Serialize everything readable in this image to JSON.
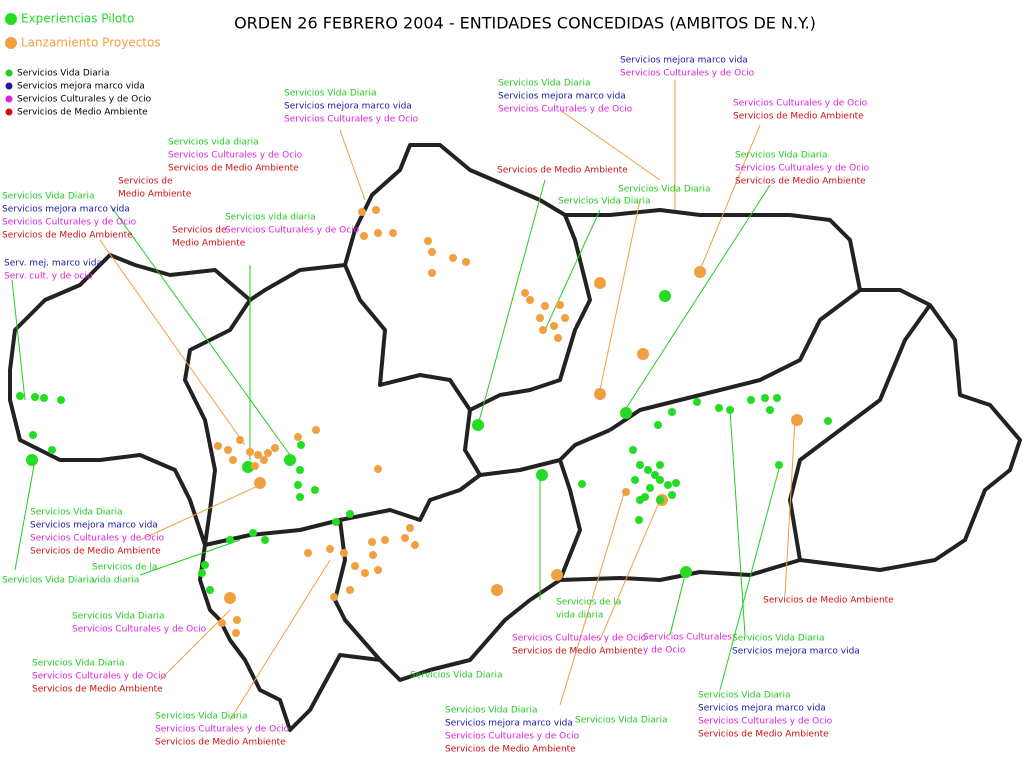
{
  "title": "ORDEN 26 FEBRERO 2004  -  ENTIDADES   CONCEDIDAS     (AMBITOS DE N.Y.)",
  "legend": {
    "main": [
      {
        "text": "Experiencias Piloto",
        "color": "#22dd22"
      },
      {
        "text": "Lanzamiento Proyectos",
        "color": "#f0a040"
      }
    ],
    "services": [
      {
        "text": "Servicios Vida Diaria",
        "color": "#22cc22"
      },
      {
        "text": "Servicios mejora marco vida",
        "color": "#1a1aa0"
      },
      {
        "text": "Servicios Culturales y de Ocio",
        "color": "#dd22dd"
      },
      {
        "text": "Servicios de Medio Ambiente",
        "color": "#cc1111"
      }
    ]
  },
  "annotations": [
    {
      "lines": [
        {
          "text": "Servicios Vida Diaria",
          "color": "#22cc22"
        },
        {
          "text": "Servicios mejora marco vida",
          "color": "#1a1aa0"
        },
        {
          "text": "Servicios Culturales y de Ocio",
          "color": "#dd22dd"
        }
      ]
    },
    {
      "lines": [
        {
          "text": "Servicios Vida Diaria",
          "color": "#22cc22"
        },
        {
          "text": "Servicios mejora marco vida",
          "color": "#1a1aa0"
        },
        {
          "text": "Servicios Culturales y de Ocio",
          "color": "#dd22dd"
        }
      ]
    },
    {
      "lines": [
        {
          "text": "Servicios mejora marco vida",
          "color": "#1a1aa0"
        },
        {
          "text": "Servicios Culturales y de Ocio",
          "color": "#dd22dd"
        }
      ]
    },
    {
      "lines": [
        {
          "text": "Servicios Culturales y de Ocio",
          "color": "#dd22dd"
        },
        {
          "text": "Servicios de Medio Ambiente",
          "color": "#cc1111"
        }
      ]
    },
    {
      "lines": [
        {
          "text": "Servicios Vida Diaria",
          "color": "#22cc22"
        },
        {
          "text": "Servicios Culturales y de Ocio",
          "color": "#dd22dd"
        },
        {
          "text": "Servicios de Medio Ambiente",
          "color": "#cc1111"
        }
      ]
    },
    {
      "lines": [
        {
          "text": "Servicios vida diaria",
          "color": "#22cc22"
        },
        {
          "text": "Servicios Culturales y de Ocio",
          "color": "#dd22dd"
        },
        {
          "text": "Servicios de Medio Ambiente",
          "color": "#cc1111"
        }
      ]
    },
    {
      "lines": [
        {
          "text": "Servicios de Medio Ambiente",
          "color": "#cc1111"
        }
      ]
    },
    {
      "lines": [
        {
          "text": "Servicios Vida Diaria",
          "color": "#22cc22"
        }
      ]
    },
    {
      "lines": [
        {
          "text": "Servicios Vida Diaria",
          "color": "#22cc22"
        }
      ]
    },
    {
      "lines": [
        {
          "text": "Servicios de",
          "color": "#cc1111"
        },
        {
          "text": "Medio Ambiente",
          "color": "#cc1111"
        }
      ]
    },
    {
      "lines": [
        {
          "text": "Servicios Vida Diaria",
          "color": "#22cc22"
        },
        {
          "text": "Servicios mejora marco vida",
          "color": "#1a1aa0"
        },
        {
          "text": "Servicios Culturales y de Ocio",
          "color": "#dd22dd"
        },
        {
          "text": "Servicios de Medio Ambiente",
          "color": "#cc1111"
        }
      ]
    },
    {
      "lines": [
        {
          "text": "Servicios vida diaria",
          "color": "#22cc22"
        },
        {
          "text": "Servicios Culturales y de Ocio",
          "color": "#dd22dd"
        }
      ]
    },
    {
      "lines": [
        {
          "text": "Servicios de",
          "color": "#cc1111"
        },
        {
          "text": "Medio Ambiente",
          "color": "#cc1111"
        }
      ]
    },
    {
      "lines": [
        {
          "text": "Serv. mej. marco vida",
          "color": "#1a1aa0"
        },
        {
          "text": "Serv. cult. y de ocio",
          "color": "#dd22dd"
        }
      ]
    },
    {
      "lines": [
        {
          "text": "Servicios Vida Diaria",
          "color": "#22cc22"
        },
        {
          "text": "Servicios mejora marco vida",
          "color": "#1a1aa0"
        },
        {
          "text": "Servicios Culturales y de Ocio",
          "color": "#dd22dd"
        },
        {
          "text": "Servicios de Medio Ambiente",
          "color": "#cc1111"
        }
      ]
    },
    {
      "lines": [
        {
          "text": "Servicios Vida Diaria",
          "color": "#22cc22"
        }
      ]
    },
    {
      "lines": [
        {
          "text": "Servicios de la",
          "color": "#22cc22"
        },
        {
          "text": "vida diaria",
          "color": "#22cc22"
        }
      ]
    },
    {
      "lines": [
        {
          "text": "Servicios Vida Diaria",
          "color": "#22cc22"
        },
        {
          "text": "Servicios Culturales y de Ocio",
          "color": "#dd22dd"
        }
      ]
    },
    {
      "lines": [
        {
          "text": "Servicios Vida Diaria",
          "color": "#22cc22"
        },
        {
          "text": "Servicios Culturales y de Ocio",
          "color": "#dd22dd"
        },
        {
          "text": "Servicios de Medio Ambiente",
          "color": "#cc1111"
        }
      ]
    },
    {
      "lines": [
        {
          "text": "Servicios Vida Diaria",
          "color": "#22cc22"
        },
        {
          "text": "Servicios Culturales y de Ocio",
          "color": "#dd22dd"
        },
        {
          "text": "Servicios de Medio Ambiente",
          "color": "#cc1111"
        }
      ]
    },
    {
      "lines": [
        {
          "text": "Servicios Vida Diaria",
          "color": "#22cc22"
        }
      ]
    },
    {
      "lines": [
        {
          "text": "Servicios de la",
          "color": "#22cc22"
        },
        {
          "text": "vida diaria",
          "color": "#22cc22"
        }
      ]
    },
    {
      "lines": [
        {
          "text": "Servicios Culturales y de Ocio",
          "color": "#dd22dd"
        },
        {
          "text": "Servicios de Medio Ambiente",
          "color": "#cc1111"
        }
      ]
    },
    {
      "lines": [
        {
          "text": "Servicios Culturales",
          "color": "#dd22dd"
        },
        {
          "text": "y de Ocio",
          "color": "#dd22dd"
        }
      ]
    },
    {
      "lines": [
        {
          "text": "Servicios Vida Diaria",
          "color": "#22cc22"
        },
        {
          "text": "Servicios mejora marco vida",
          "color": "#1a1aa0"
        }
      ]
    },
    {
      "lines": [
        {
          "text": "Servicios de Medio Ambiente",
          "color": "#cc1111"
        }
      ]
    },
    {
      "lines": [
        {
          "text": "Servicios Vida Diaria",
          "color": "#22cc22"
        },
        {
          "text": "Servicios mejora marco vida",
          "color": "#1a1aa0"
        },
        {
          "text": "Servicios Culturales y de Ocio",
          "color": "#dd22dd"
        },
        {
          "text": "Servicios de Medio Ambiente",
          "color": "#cc1111"
        }
      ]
    },
    {
      "lines": [
        {
          "text": "Servicios Vida Diaria",
          "color": "#22cc22"
        }
      ]
    },
    {
      "lines": [
        {
          "text": "Servicios Vida Diaria",
          "color": "#22cc22"
        },
        {
          "text": "Servicios mejora marco vida",
          "color": "#1a1aa0"
        },
        {
          "text": "Servicios Culturales y de Ocio",
          "color": "#dd22dd"
        },
        {
          "text": "Servicios de Medio Ambiente",
          "color": "#cc1111"
        }
      ]
    }
  ]
}
